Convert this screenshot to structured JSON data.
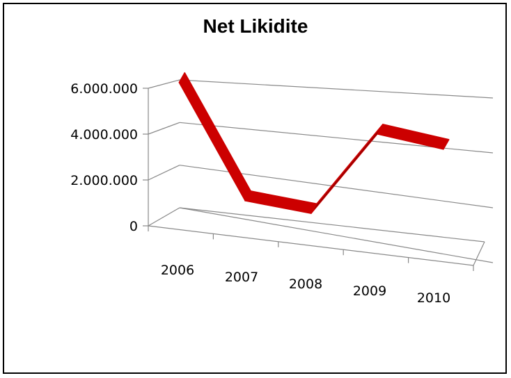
{
  "chart_data": {
    "type": "line",
    "title": "Net Likidite",
    "categories": [
      "2006",
      "2007",
      "2008",
      "2009",
      "2010"
    ],
    "series": [
      {
        "values": [
          5900000,
          1300000,
          950000,
          4300000,
          3850000
        ]
      }
    ],
    "yticks": [
      "0",
      "2.000.000",
      "4.000.000",
      "6.000.000"
    ],
    "ylim": [
      0,
      6000000
    ],
    "grid": true,
    "legend": "none",
    "colors": {
      "line": "#cc0000",
      "lineDark": "#8b0000",
      "grid": "#888888",
      "axis": "#888888"
    }
  }
}
